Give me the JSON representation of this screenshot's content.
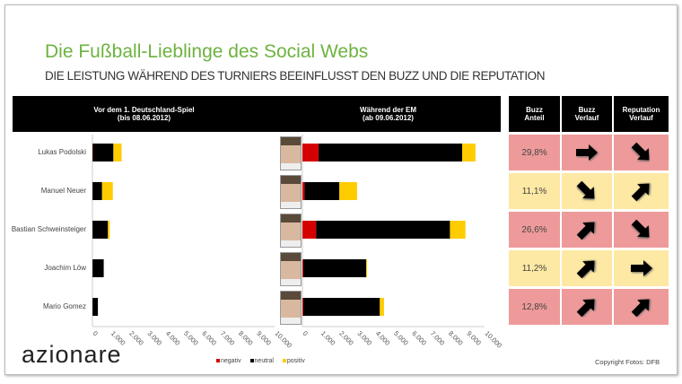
{
  "title": "Die Fußball-Lieblinge des Social Webs",
  "subtitle": "DIE LEISTUNG WÄHREND DES TURNIERS BEEINFLUSST DEN BUZZ UND DIE REPUTATION",
  "logo": "azionare",
  "copyright": "Copyright Fotos: DFB",
  "colors": {
    "negativ": "#d40000",
    "neutral": "#000000",
    "positiv": "#ffcc00",
    "row_red": "#ee9a9a",
    "row_yellow": "#fde9a3"
  },
  "chart_data": [
    {
      "type": "bar",
      "stacked": true,
      "orientation": "horizontal",
      "title_line1": "Vor dem 1. Deutschland-Spiel",
      "title_line2": "(bis 08.06.2012)",
      "categories": [
        "Lukas Podolski",
        "Manuel Neuer",
        "Bastian Schweinsteiger",
        "Joachim Löw",
        "Mario Gomez"
      ],
      "xlim": [
        0,
        10000
      ],
      "ticks": [
        "0",
        "1.000",
        "2.000",
        "3.000",
        "4.000",
        "5.000",
        "6.000",
        "7.000",
        "8.000",
        "9.000",
        "10.000"
      ],
      "series": [
        {
          "name": "negativ",
          "values": [
            20,
            10,
            10,
            10,
            10
          ]
        },
        {
          "name": "neutral",
          "values": [
            1130,
            520,
            840,
            610,
            290
          ]
        },
        {
          "name": "positiv",
          "values": [
            450,
            590,
            100,
            0,
            0
          ]
        }
      ]
    },
    {
      "type": "bar",
      "stacked": true,
      "orientation": "horizontal",
      "title_line1": "Während der EM",
      "title_line2": "(ab 09.06.2012)",
      "categories": [
        "Lukas Podolski",
        "Manuel Neuer",
        "Bastian Schweinsteiger",
        "Joachim Löw",
        "Mario Gomez"
      ],
      "xlim": [
        0,
        10000
      ],
      "ticks": [
        "0",
        "1.000",
        "2.000",
        "3.000",
        "4.000",
        "5.000",
        "6.000",
        "7.000",
        "8.000",
        "9.000",
        "10.000"
      ],
      "series": [
        {
          "name": "negativ",
          "values": [
            890,
            120,
            750,
            50,
            50
          ]
        },
        {
          "name": "neutral",
          "values": [
            7880,
            1910,
            7350,
            3450,
            4200
          ]
        },
        {
          "name": "positiv",
          "values": [
            730,
            970,
            850,
            50,
            230
          ]
        }
      ]
    }
  ],
  "legend": [
    "negativ",
    "neutral",
    "positiv"
  ],
  "table": {
    "headers": [
      [
        "Buzz",
        "Anteil"
      ],
      [
        "Buzz",
        "Verlauf"
      ],
      [
        "Reputation",
        "Verlauf"
      ]
    ],
    "rows": [
      {
        "share": "29,8%",
        "buzz": "right",
        "rep": "down-right",
        "color": "red"
      },
      {
        "share": "11,1%",
        "buzz": "down-right",
        "rep": "up-right",
        "color": "yellow"
      },
      {
        "share": "26,6%",
        "buzz": "up-right",
        "rep": "down-right",
        "color": "red"
      },
      {
        "share": "11,2%",
        "buzz": "up-right",
        "rep": "right",
        "color": "yellow"
      },
      {
        "share": "12,8%",
        "buzz": "up-right",
        "rep": "up-right",
        "color": "red"
      }
    ]
  }
}
